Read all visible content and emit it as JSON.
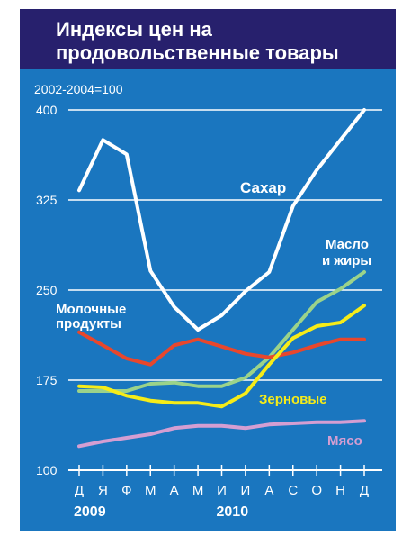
{
  "chart_data": {
    "type": "line",
    "title_line1": "Индексы цен на",
    "title_line2": "продовольственные товары",
    "subtitle": "2002-2004=100",
    "categories": [
      "Д",
      "Я",
      "Ф",
      "М",
      "А",
      "М",
      "И",
      "И",
      "А",
      "С",
      "О",
      "Н",
      "Д"
    ],
    "year_labels": [
      {
        "text": "2009",
        "category_index": 0
      },
      {
        "text": "2010",
        "category_index": 6
      }
    ],
    "y_ticks": [
      "100",
      "175",
      "250",
      "325",
      "400"
    ],
    "y_tick_values": [
      100,
      175,
      250,
      325,
      400
    ],
    "ylim": [
      100,
      400
    ],
    "grid": true,
    "series": [
      {
        "key": "sugar",
        "name": "Сахар",
        "color": "#ffffff",
        "values": [
          333,
          375,
          363,
          266,
          236,
          217,
          229,
          249,
          265,
          320,
          350,
          375,
          400
        ]
      },
      {
        "key": "oils",
        "name_line1": "Масло",
        "name_line2": "и жиры",
        "color": "#9bd38a",
        "values": [
          166,
          166,
          166,
          172,
          173,
          170,
          170,
          177,
          194,
          217,
          240,
          251,
          265
        ]
      },
      {
        "key": "dairy",
        "name_line1": "Молочные",
        "name_line2": "продукты",
        "color": "#e8472c",
        "values": [
          215,
          204,
          193,
          188,
          204,
          209,
          203,
          197,
          194,
          198,
          204,
          209,
          209
        ]
      },
      {
        "key": "cereals",
        "name": "Зерновые",
        "color": "#f6ec18",
        "values": [
          170,
          169,
          162,
          158,
          156,
          156,
          153,
          164,
          188,
          210,
          220,
          223,
          237
        ]
      },
      {
        "key": "meat",
        "name": "Мясо",
        "color": "#d49ed2",
        "values": [
          120,
          124,
          127,
          130,
          135,
          137,
          137,
          135,
          138,
          139,
          140,
          140,
          141
        ]
      }
    ]
  }
}
